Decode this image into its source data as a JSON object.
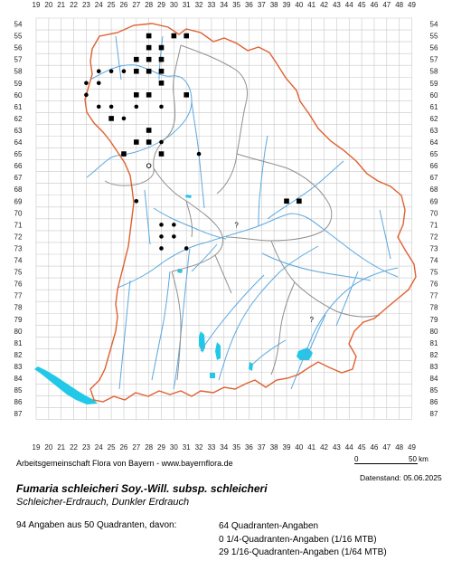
{
  "map": {
    "columns": [
      "19",
      "20",
      "21",
      "22",
      "23",
      "24",
      "25",
      "26",
      "27",
      "28",
      "29",
      "30",
      "31",
      "32",
      "33",
      "34",
      "35",
      "36",
      "37",
      "38",
      "39",
      "40",
      "41",
      "42",
      "43",
      "44",
      "45",
      "46",
      "47",
      "48",
      "49"
    ],
    "rows": [
      "54",
      "55",
      "56",
      "57",
      "58",
      "59",
      "60",
      "61",
      "62",
      "63",
      "64",
      "65",
      "66",
      "67",
      "68",
      "69",
      "70",
      "71",
      "72",
      "73",
      "74",
      "75",
      "76",
      "77",
      "78",
      "79",
      "80",
      "81",
      "82",
      "83",
      "84",
      "85",
      "86",
      "87"
    ],
    "colors": {
      "grid": "#c8c8c8",
      "state_border": "#e06030",
      "district_border": "#909090",
      "rivers": "#5aa8e0",
      "lakes": "#22c8e8",
      "records": "#000000"
    },
    "squares": [
      {
        "col": 28,
        "row": 55
      },
      {
        "col": 28,
        "row": 56
      },
      {
        "col": 29,
        "row": 56
      },
      {
        "col": 30,
        "row": 55
      },
      {
        "col": 28,
        "row": 57
      },
      {
        "col": 29,
        "row": 57
      },
      {
        "col": 27,
        "row": 57
      },
      {
        "col": 29,
        "row": 58
      },
      {
        "col": 27,
        "row": 60
      },
      {
        "col": 28,
        "row": 60
      },
      {
        "col": 31,
        "row": 60
      },
      {
        "col": 28,
        "row": 64
      },
      {
        "col": 29,
        "row": 65
      },
      {
        "col": 27,
        "row": 64
      },
      {
        "col": 26,
        "row": 65
      },
      {
        "col": 39,
        "row": 69
      },
      {
        "col": 40,
        "row": 69
      },
      {
        "col": 27,
        "row": 58
      },
      {
        "col": 28,
        "row": 58
      },
      {
        "col": 25,
        "row": 62
      },
      {
        "col": 31,
        "row": 55
      },
      {
        "col": 29,
        "row": 59
      },
      {
        "col": 28,
        "row": 63
      }
    ],
    "dots": [
      {
        "col": 24,
        "row": 58
      },
      {
        "col": 25,
        "row": 58
      },
      {
        "col": 26,
        "row": 58
      },
      {
        "col": 24,
        "row": 59
      },
      {
        "col": 23,
        "row": 59
      },
      {
        "col": 24,
        "row": 61
      },
      {
        "col": 25,
        "row": 61
      },
      {
        "col": 23,
        "row": 60
      },
      {
        "col": 26,
        "row": 62
      },
      {
        "col": 29,
        "row": 61
      },
      {
        "col": 27,
        "row": 61
      },
      {
        "col": 29,
        "row": 64
      },
      {
        "col": 32,
        "row": 65
      },
      {
        "col": 27,
        "row": 69
      },
      {
        "col": 29,
        "row": 71
      },
      {
        "col": 30,
        "row": 71
      },
      {
        "col": 29,
        "row": 72
      },
      {
        "col": 30,
        "row": 72
      },
      {
        "col": 29,
        "row": 73
      },
      {
        "col": 31,
        "row": 73
      }
    ],
    "open_circles": [
      {
        "col": 28,
        "row": 66
      }
    ],
    "question_marks": [
      {
        "col": 35,
        "row": 71,
        "text": "?"
      },
      {
        "col": 41,
        "row": 79,
        "text": "?"
      }
    ]
  },
  "footer": {
    "credit": "Arbeitsgemeinschaft Flora von Bayern - www.bayernflora.de",
    "scale_zero": "0",
    "scale_fifty": "50 km",
    "date": "Datenstand: 05.06.2025",
    "title": "Fumaria schleicheri Soy.-Will. subsp. schleicheri",
    "subtitle": "Schleicher-Erdrauch, Dunkler Erdrauch",
    "stats_left": "94 Angaben aus 50 Quadranten, davon:",
    "stats_right": [
      "64 Quadranten-Angaben",
      "0 1/4-Quadranten-Angaben (1/16 MTB)",
      "29 1/16-Quadranten-Angaben (1/64 MTB)"
    ]
  }
}
